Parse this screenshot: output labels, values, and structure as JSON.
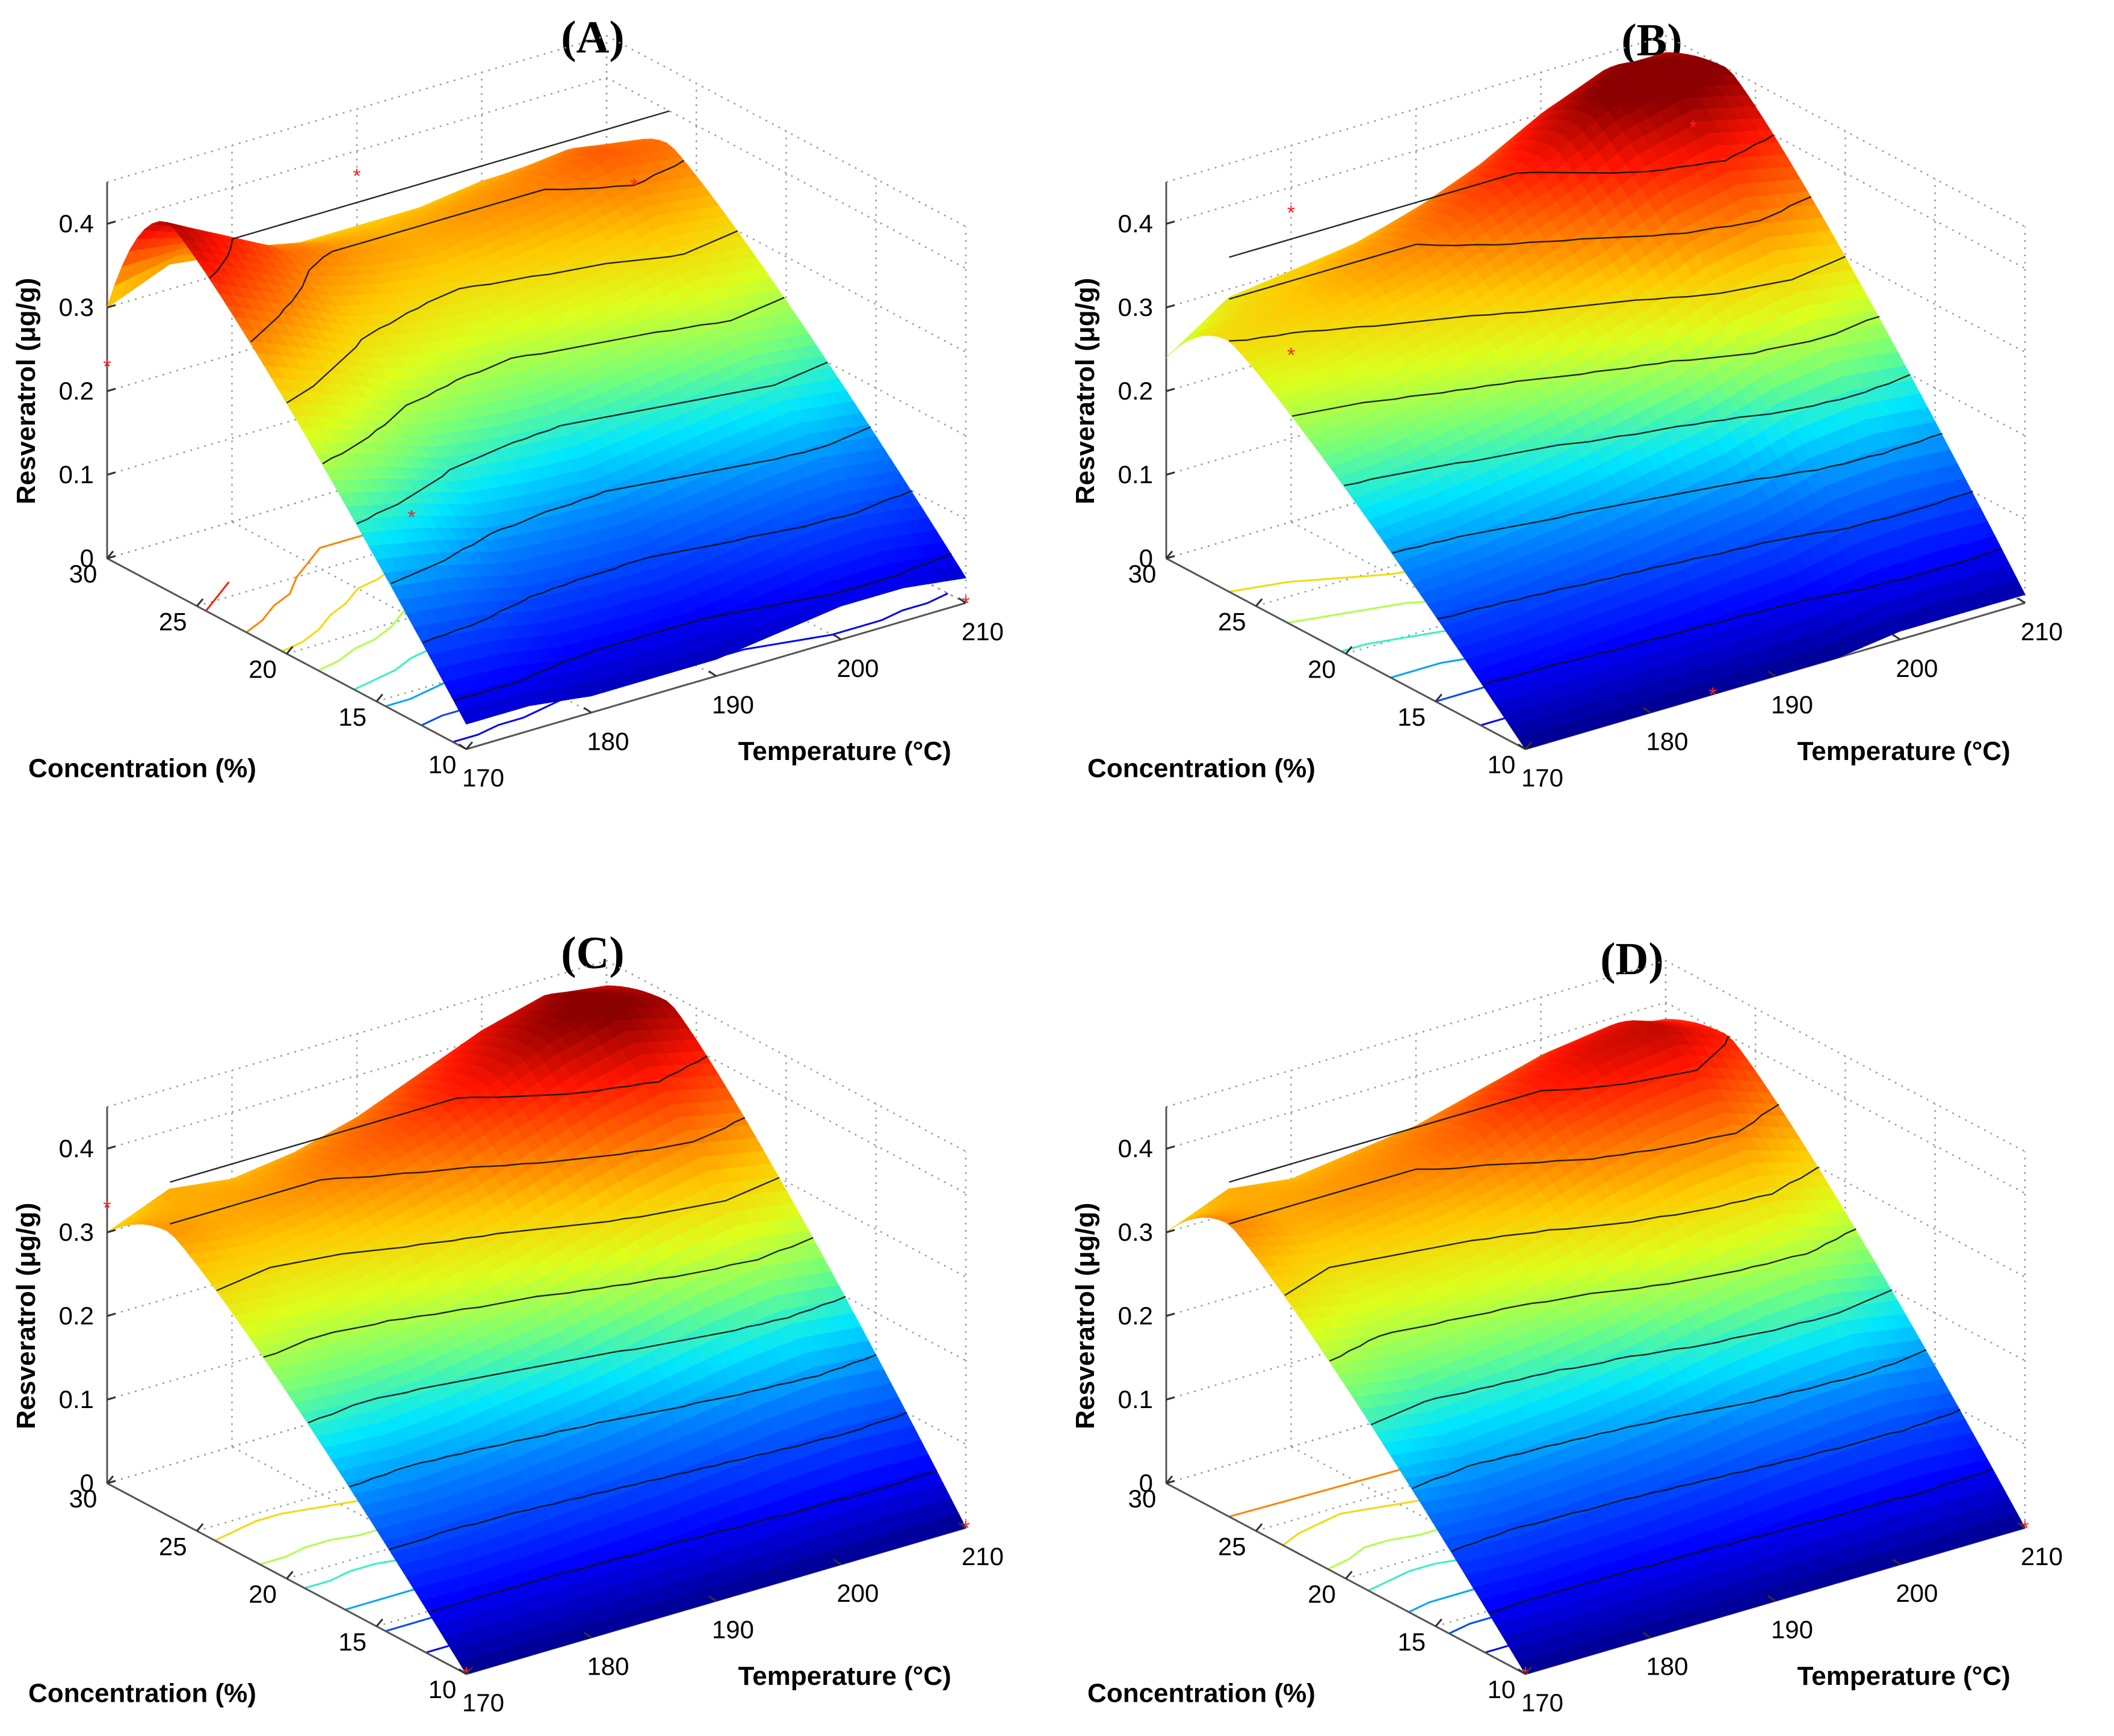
{
  "chart_data": [
    {
      "type": "surface",
      "title": "(A)",
      "xlabel": "Concentration (%)",
      "ylabel": "Temperature (°C)",
      "zlabel": "Resveratrol (μg/g)",
      "xticks": [
        "30",
        "25",
        "20",
        "15",
        "10"
      ],
      "yticks": [
        "170",
        "180",
        "190",
        "200",
        "210"
      ],
      "zticks": [
        "0",
        "0.1",
        "0.2",
        "0.3",
        "0.4"
      ],
      "xlim": [
        10,
        30
      ],
      "ylim": [
        170,
        210
      ],
      "zlim": [
        0,
        0.45
      ],
      "grid": true,
      "colormap": "jet",
      "surface_profile": {
        "temperature": [
          170,
          175,
          180,
          185,
          190,
          195,
          200,
          205,
          210
        ],
        "resveratrol_at_concentration_30": [
          0.3,
          0.33,
          0.32,
          0.31,
          0.31,
          0.31,
          0.32,
          0.32,
          0.3
        ],
        "resveratrol_peak": [
          0.44,
          0.4,
          0.36,
          0.34,
          0.33,
          0.34,
          0.35,
          0.37,
          0.36
        ],
        "resveratrol_at_concentration_10": [
          0.03,
          0.03,
          0.02,
          0.02,
          0.02,
          0.03,
          0.04,
          0.04,
          0.03
        ]
      },
      "observed_points": [
        {
          "concentration": 30,
          "temperature": 170,
          "resveratrol": 0.23
        },
        {
          "concentration": 30,
          "temperature": 190,
          "resveratrol": 0.37
        },
        {
          "concentration": 25,
          "temperature": 205,
          "resveratrol": 0.35
        },
        {
          "concentration": 20,
          "temperature": 180,
          "resveratrol": 0.12
        },
        {
          "concentration": 10,
          "temperature": 210,
          "resveratrol": 0.0
        }
      ]
    },
    {
      "type": "surface",
      "title": "(B)",
      "xlabel": "Concentration (%)",
      "ylabel": "Temperature (°C)",
      "zlabel": "Resveratrol (μg/g)",
      "xticks": [
        "30",
        "25",
        "20",
        "15",
        "10"
      ],
      "yticks": [
        "170",
        "180",
        "190",
        "200",
        "210"
      ],
      "zticks": [
        "0",
        "0.1",
        "0.2",
        "0.3",
        "0.4"
      ],
      "xlim": [
        10,
        30
      ],
      "ylim": [
        170,
        210
      ],
      "zlim": [
        0,
        0.45
      ],
      "grid": true,
      "colormap": "jet",
      "surface_profile": {
        "temperature": [
          170,
          175,
          180,
          185,
          190,
          195,
          200,
          205,
          210
        ],
        "resveratrol_at_concentration_30": [
          0.24,
          0.29,
          0.3,
          0.31,
          0.33,
          0.36,
          0.4,
          0.43,
          0.43
        ],
        "resveratrol_peak": [
          0.3,
          0.31,
          0.33,
          0.35,
          0.38,
          0.41,
          0.45,
          0.47,
          0.45
        ],
        "resveratrol_at_concentration_10": [
          0.0,
          0.0,
          0.0,
          0.0,
          0.0,
          0.0,
          0.01,
          0.01,
          0.01
        ]
      },
      "observed_points": [
        {
          "concentration": 30,
          "temperature": 180,
          "resveratrol": 0.37
        },
        {
          "concentration": 30,
          "temperature": 180,
          "resveratrol": 0.2
        },
        {
          "concentration": 25,
          "temperature": 205,
          "resveratrol": 0.42
        },
        {
          "concentration": 10,
          "temperature": 185,
          "resveratrol": 0.0
        }
      ]
    },
    {
      "type": "surface",
      "title": "(C)",
      "xlabel": "Concentration (%)",
      "ylabel": "Temperature (°C)",
      "zlabel": "Resveratrol (μg/g)",
      "xticks": [
        "30",
        "25",
        "20",
        "15",
        "10"
      ],
      "yticks": [
        "170",
        "180",
        "190",
        "200",
        "210"
      ],
      "zticks": [
        "0",
        "0.1",
        "0.2",
        "0.3",
        "0.4"
      ],
      "xlim": [
        10,
        30
      ],
      "ylim": [
        170,
        210
      ],
      "zlim": [
        0,
        0.45
      ],
      "grid": true,
      "colormap": "jet",
      "surface_profile": {
        "temperature": [
          170,
          175,
          180,
          185,
          190,
          195,
          200,
          205,
          210
        ],
        "resveratrol_at_concentration_30": [
          0.3,
          0.33,
          0.32,
          0.33,
          0.35,
          0.38,
          0.41,
          0.43,
          0.42
        ],
        "resveratrol_peak": [
          0.34,
          0.33,
          0.34,
          0.36,
          0.38,
          0.41,
          0.44,
          0.46,
          0.44
        ],
        "resveratrol_at_concentration_10": [
          0.0,
          0.0,
          0.0,
          0.0,
          0.0,
          0.0,
          0.0,
          0.0,
          0.0
        ]
      },
      "observed_points": [
        {
          "concentration": 30,
          "temperature": 170,
          "resveratrol": 0.33
        },
        {
          "concentration": 10,
          "temperature": 170,
          "resveratrol": 0.0
        },
        {
          "concentration": 10,
          "temperature": 210,
          "resveratrol": 0.0
        }
      ]
    },
    {
      "type": "surface",
      "title": "(D)",
      "xlabel": "Concentration (%)",
      "ylabel": "Temperature (°C)",
      "zlabel": "Resveratrol (μg/g)",
      "xticks": [
        "30",
        "25",
        "20",
        "15",
        "10"
      ],
      "yticks": [
        "170",
        "180",
        "190",
        "200",
        "210"
      ],
      "zticks": [
        "0",
        "0.1",
        "0.2",
        "0.3",
        "0.4"
      ],
      "xlim": [
        10,
        30
      ],
      "ylim": [
        170,
        210
      ],
      "zlim": [
        0,
        0.45
      ],
      "grid": true,
      "colormap": "jet",
      "surface_profile": {
        "temperature": [
          170,
          175,
          180,
          185,
          190,
          195,
          200,
          205,
          210
        ],
        "resveratrol_at_concentration_30": [
          0.3,
          0.33,
          0.32,
          0.33,
          0.34,
          0.36,
          0.38,
          0.39,
          0.38
        ],
        "resveratrol_peak": [
          0.35,
          0.33,
          0.34,
          0.35,
          0.37,
          0.4,
          0.42,
          0.43,
          0.4
        ],
        "resveratrol_at_concentration_10": [
          0.0,
          0.0,
          0.0,
          0.0,
          0.0,
          0.0,
          0.0,
          0.0,
          0.0
        ]
      },
      "observed_points": [
        {
          "concentration": 10,
          "temperature": 170,
          "resveratrol": 0.0
        },
        {
          "concentration": 10,
          "temperature": 210,
          "resveratrol": 0.0
        }
      ]
    }
  ]
}
